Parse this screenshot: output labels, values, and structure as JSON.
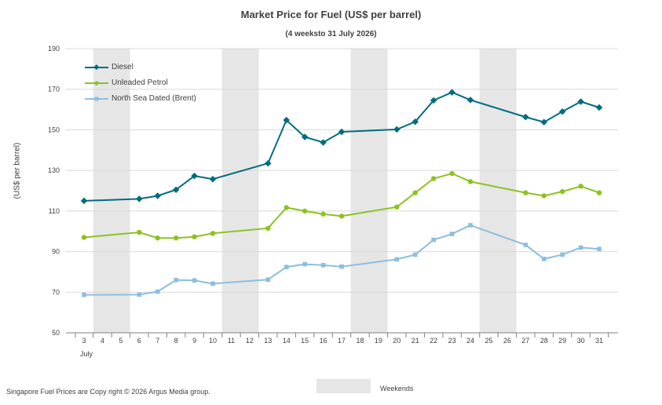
{
  "chart_data": {
    "type": "line",
    "title": "Market Price for Fuel (US$ per barrel)",
    "subtitle": "(4 weeksto 31 July 2026)",
    "ylabel": "(US$ per barrel)",
    "xlabel": "July",
    "ylim": [
      50,
      190
    ],
    "yticks": [
      50,
      70,
      90,
      110,
      130,
      150,
      170,
      190
    ],
    "categories": [
      "3",
      "4",
      "5",
      "6",
      "7",
      "8",
      "9",
      "10",
      "11",
      "12",
      "13",
      "14",
      "15",
      "16",
      "17",
      "18",
      "19",
      "20",
      "21",
      "22",
      "23",
      "24",
      "25",
      "26",
      "27",
      "28",
      "29",
      "30",
      "31"
    ],
    "weekends": [
      [
        "4",
        "5"
      ],
      [
        "11",
        "12"
      ],
      [
        "18",
        "19"
      ],
      [
        "25",
        "26"
      ]
    ],
    "grid": true,
    "legend_position": "top-left",
    "series": [
      {
        "name": "Diesel",
        "color": "#006c7f",
        "marker": "diamond",
        "x": [
          "3",
          "6",
          "7",
          "8",
          "9",
          "10",
          "13",
          "14",
          "15",
          "16",
          "17",
          "20",
          "21",
          "22",
          "23",
          "24",
          "27",
          "28",
          "29",
          "30",
          "31"
        ],
        "values": [
          115,
          116,
          117.5,
          120.5,
          127.3,
          125.7,
          133.5,
          154.8,
          146.5,
          143.8,
          149,
          150.2,
          154,
          164.5,
          168.5,
          164.7,
          156.3,
          153.8,
          159,
          163.9,
          161
        ]
      },
      {
        "name": "Unleaded Petrol",
        "color": "#8dc21f",
        "marker": "circle",
        "x": [
          "3",
          "6",
          "7",
          "8",
          "9",
          "10",
          "13",
          "14",
          "15",
          "16",
          "17",
          "20",
          "21",
          "22",
          "23",
          "24",
          "27",
          "28",
          "29",
          "30",
          "31"
        ],
        "values": [
          97,
          99.5,
          96.7,
          96.7,
          97.3,
          99,
          101.5,
          111.7,
          110,
          108.5,
          107.5,
          112,
          119,
          126,
          128.5,
          124.5,
          119,
          117.5,
          119.6,
          122.2,
          119
        ]
      },
      {
        "name": "North Sea Dated (Brent)",
        "color": "#8cbedf",
        "marker": "square",
        "x": [
          "3",
          "6",
          "7",
          "8",
          "9",
          "10",
          "13",
          "14",
          "15",
          "16",
          "17",
          "20",
          "21",
          "22",
          "23",
          "24",
          "27",
          "28",
          "29",
          "30",
          "31"
        ],
        "values": [
          68.7,
          68.8,
          70.3,
          76,
          75.8,
          74.2,
          76.2,
          82.4,
          83.8,
          83.3,
          82.6,
          86.2,
          88.5,
          95.8,
          98.7,
          103,
          93.3,
          86.4,
          88.5,
          92,
          91.3
        ]
      }
    ]
  },
  "footer": {
    "copyright": "Singapore  Fuel Prices are  Copy right © 2026 Argus Media  group.",
    "weekends_label": "Weekends"
  }
}
